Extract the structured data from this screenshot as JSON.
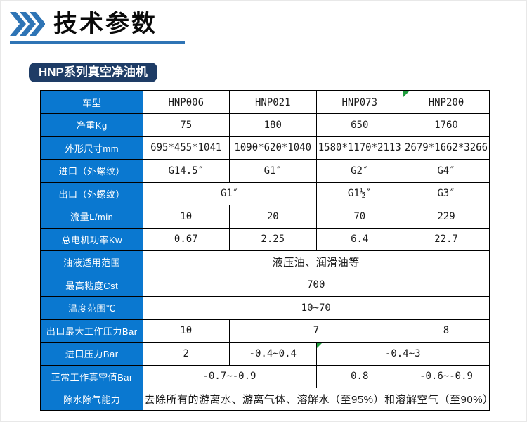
{
  "header": {
    "title": "技术参数",
    "chevron_icon": "triple-chevron-right",
    "underline_color": "#2e74b5",
    "chevron_color": "#2e74b5"
  },
  "badge": {
    "label": "HNP系列真空净油机",
    "bg_color": "#1e3c66"
  },
  "table": {
    "label_bg_color": "#0a78d0",
    "marker_color": "#1f9d3d",
    "columns": [
      "label",
      "HNP006",
      "HNP021",
      "HNP073",
      "HNP200"
    ],
    "rows": [
      {
        "label": "车型",
        "cells": [
          {
            "text": "HNP006"
          },
          {
            "text": "HNP021"
          },
          {
            "text": "HNP073"
          },
          {
            "text": "HNP200",
            "marker": true
          }
        ]
      },
      {
        "label": "净重Kg",
        "cells": [
          {
            "text": "75"
          },
          {
            "text": "180"
          },
          {
            "text": "650"
          },
          {
            "text": "1760"
          }
        ]
      },
      {
        "label": "外形尺寸mm",
        "cells": [
          {
            "text": "695*455*1041"
          },
          {
            "text": "1090*620*1040"
          },
          {
            "text": "1580*1170*2113"
          },
          {
            "text": "2679*1662*3266"
          }
        ]
      },
      {
        "label": "进口（外螺纹）",
        "cells": [
          {
            "text": "G14.5″"
          },
          {
            "text": "G1″"
          },
          {
            "text": "G2″"
          },
          {
            "text": "G4″"
          }
        ]
      },
      {
        "label": "出口（外螺纹）",
        "cells": [
          {
            "text": "G1″",
            "span": 2
          },
          {
            "text": "G1½″"
          },
          {
            "text": "G3″"
          }
        ]
      },
      {
        "label": "流量L/min",
        "cells": [
          {
            "text": "10"
          },
          {
            "text": "20"
          },
          {
            "text": "70"
          },
          {
            "text": "229"
          }
        ]
      },
      {
        "label": "总电机功率Kw",
        "cells": [
          {
            "text": "0.67"
          },
          {
            "text": "2.25"
          },
          {
            "text": "6.4"
          },
          {
            "text": "22.7"
          }
        ]
      },
      {
        "label": "油液适用范围",
        "cells": [
          {
            "text": "液压油、润滑油等",
            "span": 4,
            "cjk": true
          }
        ]
      },
      {
        "label": "最高粘度Cst",
        "cells": [
          {
            "text": "700",
            "span": 4
          }
        ]
      },
      {
        "label": "温度范围℃",
        "cells": [
          {
            "text": "10~70",
            "span": 4
          }
        ]
      },
      {
        "label": "出口最大工作压力Bar",
        "cells": [
          {
            "text": "10"
          },
          {
            "text": "7",
            "span": 2
          },
          {
            "text": "8"
          }
        ]
      },
      {
        "label": "进口压力Bar",
        "cells": [
          {
            "text": "2"
          },
          {
            "text": "-0.4~0.4"
          },
          {
            "text": "-0.4~3",
            "span": 2,
            "marker": true
          }
        ]
      },
      {
        "label": "正常工作真空值Bar",
        "cells": [
          {
            "text": "-0.7~-0.9",
            "span": 2
          },
          {
            "text": "0.8"
          },
          {
            "text": "-0.6~-0.9"
          }
        ]
      },
      {
        "label": "除水除气能力",
        "cells": [
          {
            "text": "去除所有的游离水、游离气体、溶解水（至95%）和溶解空气（至90%）",
            "span": 4,
            "cjk": true
          }
        ]
      }
    ]
  }
}
